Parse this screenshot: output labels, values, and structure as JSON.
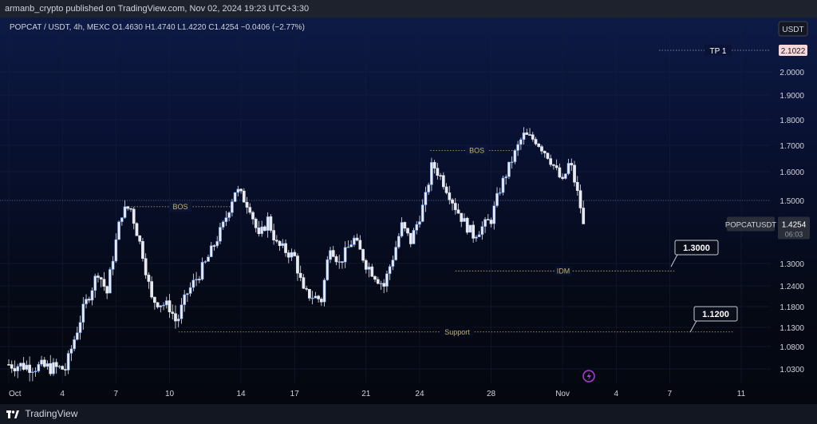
{
  "header": {
    "publish_line": "armanb_crypto published on TradingView.com, Nov 02, 2024 19:23 UTC+3:30"
  },
  "footer": {
    "brand": "TradingView",
    "logo_icon": "tradingview-logo-icon"
  },
  "colors": {
    "candle": "#e8eaf0",
    "candle_up_edge": "#5b8def",
    "label_gold": "#c8b46a",
    "tp_box": "#f8d7da",
    "accent": "#2962ff"
  },
  "chart_data": {
    "type": "candlestick",
    "symbol_line": {
      "symbol": "POPCAT / USDT, 4h, MEXC",
      "open": "O1.4630",
      "high": "H1.4740",
      "low": "L1.4220",
      "close": "C1.4254",
      "change": "−0.0406 (−2.77%)"
    },
    "currency": "USDT",
    "ylim": [
      1.0,
      2.2
    ],
    "y_ticks": [
      "2.0000",
      "1.9000",
      "1.8000",
      "1.7000",
      "1.6000",
      "1.5000",
      "1.3000",
      "1.2400",
      "1.1800",
      "1.1300",
      "1.0800",
      "1.0300"
    ],
    "x_ticks": [
      {
        "label": "Oct",
        "day": 0
      },
      {
        "label": "4",
        "day": 3
      },
      {
        "label": "7",
        "day": 6
      },
      {
        "label": "10",
        "day": 9
      },
      {
        "label": "14",
        "day": 13
      },
      {
        "label": "17",
        "day": 16
      },
      {
        "label": "21",
        "day": 20
      },
      {
        "label": "24",
        "day": 23
      },
      {
        "label": "28",
        "day": 27
      },
      {
        "label": "Nov",
        "day": 31
      },
      {
        "label": "4",
        "day": 34
      },
      {
        "label": "7",
        "day": 37
      },
      {
        "label": "11",
        "day": 41
      }
    ],
    "price_path": [
      [
        0,
        1.04
      ],
      [
        3.2,
        1.03
      ],
      [
        4,
        1.15
      ],
      [
        5,
        1.28
      ],
      [
        5.5,
        1.22
      ],
      [
        6.3,
        1.46
      ],
      [
        6.8,
        1.48
      ],
      [
        7.5,
        1.33
      ],
      [
        8,
        1.2
      ],
      [
        9,
        1.18
      ],
      [
        9.4,
        1.14
      ],
      [
        10,
        1.22
      ],
      [
        11,
        1.3
      ],
      [
        12,
        1.42
      ],
      [
        12.7,
        1.54
      ],
      [
        13.5,
        1.48
      ],
      [
        14,
        1.38
      ],
      [
        14.5,
        1.44
      ],
      [
        15,
        1.36
      ],
      [
        16,
        1.32
      ],
      [
        16.5,
        1.22
      ],
      [
        17.5,
        1.2
      ],
      [
        18,
        1.36
      ],
      [
        18.5,
        1.3
      ],
      [
        19.3,
        1.38
      ],
      [
        20,
        1.3
      ],
      [
        21,
        1.24
      ],
      [
        21.5,
        1.32
      ],
      [
        22,
        1.42
      ],
      [
        22.5,
        1.37
      ],
      [
        23.3,
        1.5
      ],
      [
        23.7,
        1.63
      ],
      [
        24.2,
        1.58
      ],
      [
        25,
        1.48
      ],
      [
        25.5,
        1.43
      ],
      [
        26,
        1.39
      ],
      [
        27,
        1.44
      ],
      [
        27.5,
        1.54
      ],
      [
        28.2,
        1.65
      ],
      [
        28.8,
        1.74
      ],
      [
        29.5,
        1.72
      ],
      [
        30.2,
        1.66
      ],
      [
        31,
        1.56
      ],
      [
        31.4,
        1.64
      ],
      [
        32,
        1.48
      ],
      [
        32.3,
        1.43
      ]
    ],
    "last_price": "1.4254",
    "last_symbol": "POPCATUSDT",
    "countdown": "06:03",
    "annotations": {
      "tp": {
        "label": "TP 1",
        "price": "2.1022"
      },
      "bos1": {
        "label": "BOS"
      },
      "bos2": {
        "label": "BOS"
      },
      "idm": {
        "label": "IDM"
      },
      "support": {
        "label": "Support"
      },
      "callout1": {
        "label": "1.3000"
      },
      "callout2": {
        "label": "1.1200"
      }
    },
    "hline_price": 1.5
  }
}
